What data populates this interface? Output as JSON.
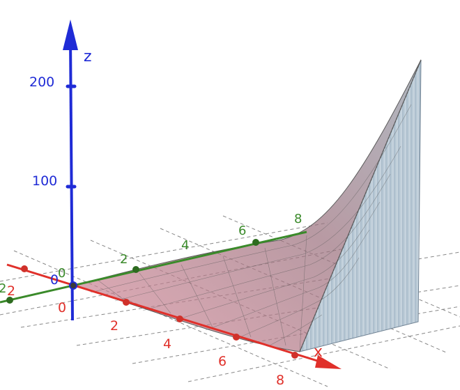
{
  "scene": {
    "z_axis": {
      "name": "z",
      "ticks": [
        "200",
        "100",
        "0"
      ],
      "color": "#1f2bd6"
    },
    "x_axis": {
      "name": "x",
      "ticks": [
        "2",
        "4",
        "6",
        "8"
      ],
      "color": "#e0302a"
    },
    "y_axis": {
      "ticks": [
        "2",
        "4",
        "6",
        "8"
      ],
      "neg_tick": "2",
      "origin": "0",
      "color": "#3a8a2a"
    },
    "origin_label": "0",
    "surface_color": "#a85a6a",
    "wall_color": "#b8c9d6"
  }
}
